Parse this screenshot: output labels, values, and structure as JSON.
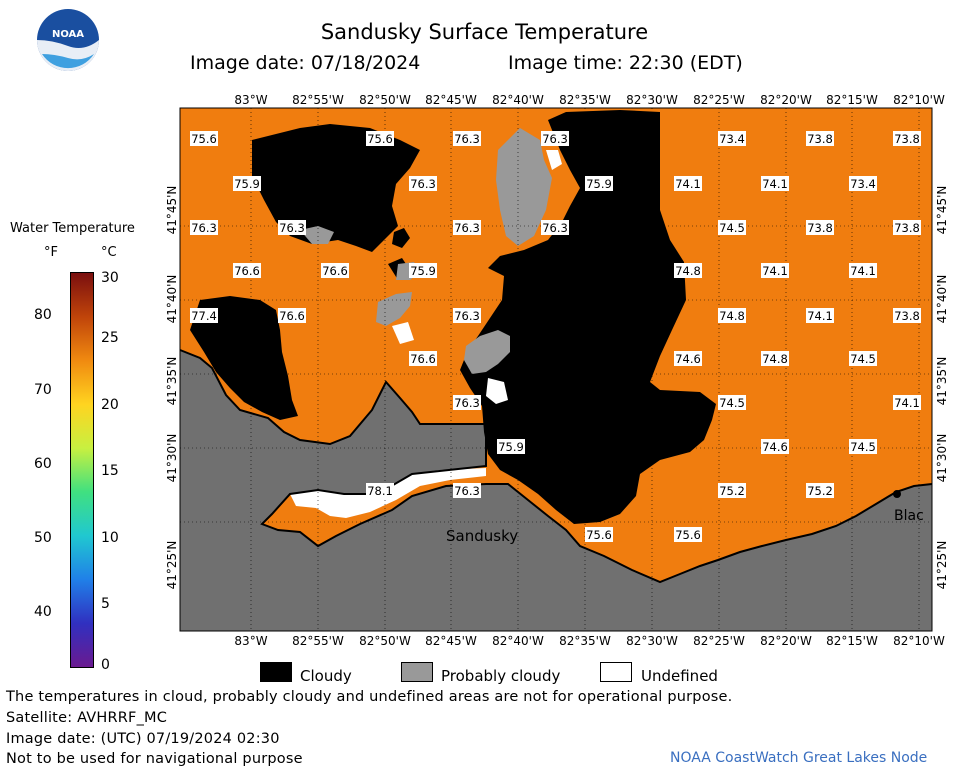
{
  "header": {
    "title": "Sandusky Surface Temperature",
    "image_date": "Image date: 07/18/2024",
    "image_time": "Image time: 22:30 (EDT)"
  },
  "logo": {
    "text": "NOAA"
  },
  "colorbar": {
    "title": "Water Temperature",
    "unit_f": "°F",
    "unit_c": "°C",
    "f_ticks": [
      "80",
      "70",
      "60",
      "50",
      "40"
    ],
    "c_ticks": [
      "30",
      "25",
      "20",
      "15",
      "10",
      "5",
      "0"
    ],
    "colors": [
      "#7a0f0f",
      "#c0440a",
      "#f08a10",
      "#ffd420",
      "#c8f040",
      "#40e080",
      "#20c8d0",
      "#2080e8",
      "#3030c0",
      "#6a1a90"
    ]
  },
  "axes": {
    "top_lon": [
      "83°W",
      "82°55'W",
      "82°50'W",
      "82°45'W",
      "82°40'W",
      "82°35'W",
      "82°30'W",
      "82°25'W",
      "82°20'W",
      "82°15'W",
      "82°10'W"
    ],
    "bottom_lon": [
      "83°W",
      "82°55'W",
      "82°50'W",
      "82°45'W",
      "82°40'W",
      "82°35'W",
      "82°30'W",
      "82°25'W",
      "82°20'W",
      "82°15'W",
      "82°10'W"
    ],
    "lat": [
      "41°45'N",
      "41°40'N",
      "41°35'N",
      "41°30'N",
      "41°25'N"
    ]
  },
  "map": {
    "colors": {
      "water": "#f07d0f",
      "cloudy": "#000000",
      "probably_cloudy": "#777777",
      "land": "#707070",
      "undefined": "#ffffff"
    },
    "place_labels": [
      "Sandusky",
      "Blac"
    ],
    "temperatures": [
      "75.6",
      "75.6",
      "76.3",
      "76.3",
      "73.4",
      "73.8",
      "73.8",
      "75.9",
      "76.3",
      "75.9",
      "74.1",
      "74.1",
      "73.4",
      "76.3",
      "76.3",
      "76.3",
      "76.3",
      "74.5",
      "73.8",
      "73.8",
      "76.6",
      "76.6",
      "75.9",
      "74.8",
      "74.1",
      "74.1",
      "77.4",
      "76.6",
      "76.3",
      "74.8",
      "74.1",
      "73.8",
      "76.6",
      "74.6",
      "74.8",
      "74.5",
      "76.3",
      "74.5",
      "74.1",
      "75.9",
      "74.6",
      "74.5",
      "78.1",
      "76.3",
      "75.2",
      "75.2",
      "75.6",
      "75.6"
    ]
  },
  "legend": {
    "cloudy": "Cloudy",
    "probably_cloudy": "Probably cloudy",
    "undefined": "Undefined"
  },
  "footer": {
    "note": "The temperatures in cloud, probably cloudy and undefined areas are not for operational purpose.",
    "satellite": "Satellite: AVHRRF_MC",
    "utc_date": "Image date: (UTC) 07/19/2024  02:30",
    "nav": "Not to be used for navigational purpose",
    "credit": "NOAA CoastWatch Great Lakes Node"
  }
}
